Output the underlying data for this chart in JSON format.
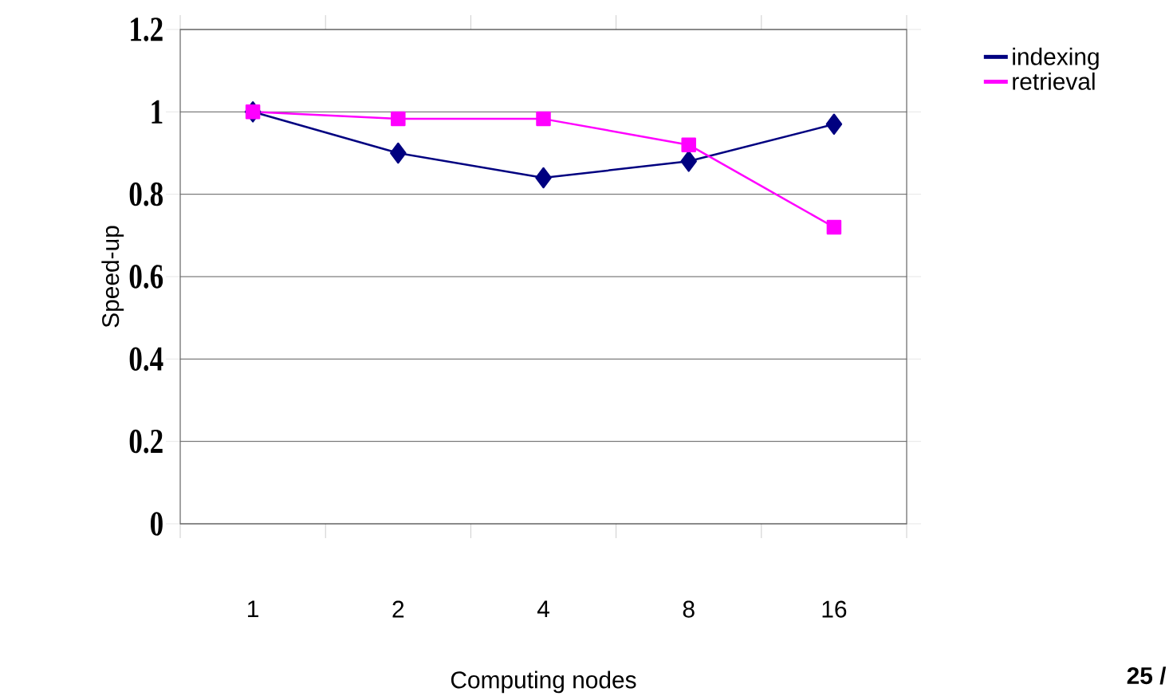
{
  "chart_data": {
    "type": "line",
    "xlabel": "Computing nodes",
    "ylabel": "Speed-up",
    "categories": [
      "1",
      "2",
      "4",
      "8",
      "16"
    ],
    "series": [
      {
        "name": "indexing",
        "color": "#000080",
        "marker": "diamond",
        "values": [
          1.0,
          0.9,
          0.84,
          0.88,
          0.97
        ]
      },
      {
        "name": "retrieval",
        "color": "#ff00ff",
        "marker": "square",
        "values": [
          1.0,
          0.983,
          0.983,
          0.92,
          0.72
        ]
      }
    ],
    "ylim": [
      0,
      1.2
    ],
    "yticks": [
      0,
      0.2,
      0.4,
      0.6,
      0.8,
      1,
      1.2
    ],
    "grid": "y",
    "legend": "top right",
    "annotations": [
      "25 /"
    ]
  }
}
